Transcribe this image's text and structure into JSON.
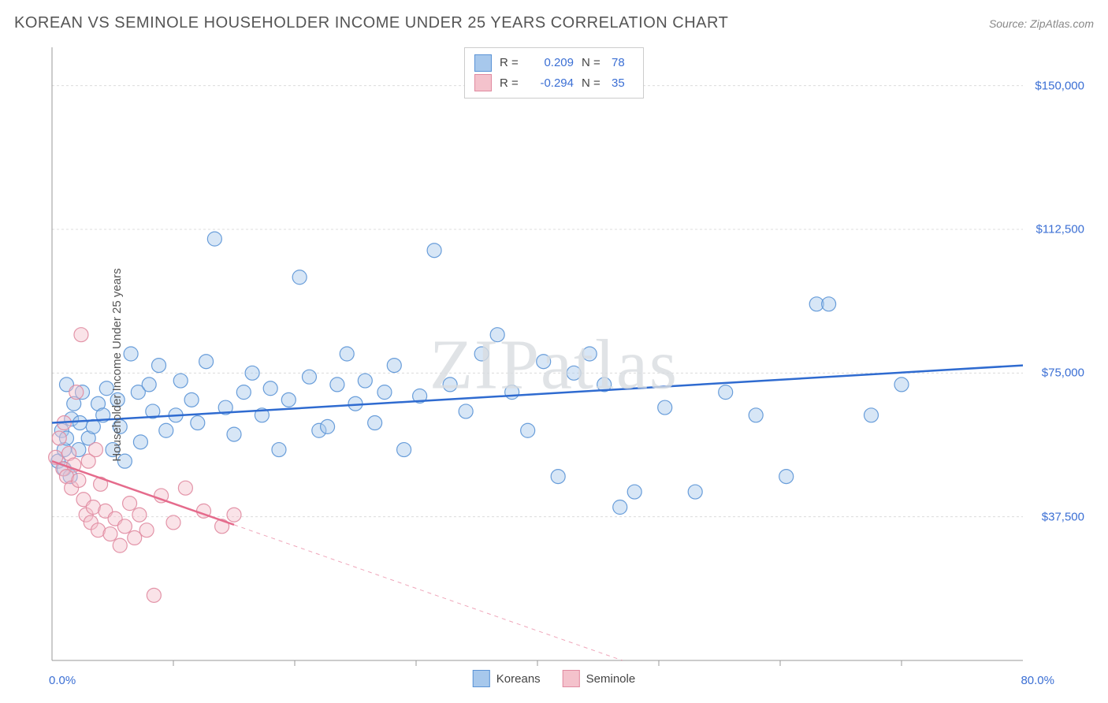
{
  "title": "KOREAN VS SEMINOLE HOUSEHOLDER INCOME UNDER 25 YEARS CORRELATION CHART",
  "source": "Source: ZipAtlas.com",
  "ylabel": "Householder Income Under 25 years",
  "watermark": "ZIPatlas",
  "chart": {
    "type": "scatter",
    "background_color": "#ffffff",
    "grid_color": "#dcdcdc",
    "axis_color": "#999999",
    "xlim": [
      0,
      80
    ],
    "ylim": [
      0,
      160000
    ],
    "x_tick_positions": [
      10,
      20,
      30,
      40,
      50,
      60,
      70
    ],
    "x_axis_label_min": "0.0%",
    "x_axis_label_max": "80.0%",
    "x_axis_label_color": "#3b6fd4",
    "y_ticks": [
      {
        "v": 37500,
        "label": "$37,500"
      },
      {
        "v": 75000,
        "label": "$75,000"
      },
      {
        "v": 112500,
        "label": "$112,500"
      },
      {
        "v": 150000,
        "label": "$150,000"
      }
    ],
    "y_tick_color": "#3b6fd4",
    "marker_radius": 9,
    "marker_opacity": 0.45,
    "marker_stroke_opacity": 0.9,
    "line_width": 2.5
  },
  "series": [
    {
      "name": "Koreans",
      "color_fill": "#a7c8ec",
      "color_stroke": "#5a93d6",
      "line_color": "#2f6bd0",
      "R": "0.209",
      "N": "78",
      "trend": {
        "x1": 0,
        "y1": 62000,
        "x2": 80,
        "y2": 77000,
        "solid_until_x": 80
      },
      "points": [
        [
          0.5,
          52000
        ],
        [
          0.8,
          60000
        ],
        [
          1.0,
          50000
        ],
        [
          1.0,
          55000
        ],
        [
          1.2,
          72000
        ],
        [
          1.2,
          58000
        ],
        [
          1.5,
          48000
        ],
        [
          1.6,
          63000
        ],
        [
          1.8,
          67000
        ],
        [
          2.2,
          55000
        ],
        [
          2.3,
          62000
        ],
        [
          2.5,
          70000
        ],
        [
          3.0,
          58000
        ],
        [
          3.4,
          61000
        ],
        [
          3.8,
          67000
        ],
        [
          4.2,
          64000
        ],
        [
          4.5,
          71000
        ],
        [
          5.0,
          55000
        ],
        [
          5.4,
          68000
        ],
        [
          5.6,
          61000
        ],
        [
          6.0,
          52000
        ],
        [
          6.5,
          80000
        ],
        [
          7.1,
          70000
        ],
        [
          7.3,
          57000
        ],
        [
          8.0,
          72000
        ],
        [
          8.3,
          65000
        ],
        [
          8.8,
          77000
        ],
        [
          9.4,
          60000
        ],
        [
          10.2,
          64000
        ],
        [
          10.6,
          73000
        ],
        [
          11.5,
          68000
        ],
        [
          12.0,
          62000
        ],
        [
          12.7,
          78000
        ],
        [
          13.4,
          110000
        ],
        [
          14.3,
          66000
        ],
        [
          15.0,
          59000
        ],
        [
          15.8,
          70000
        ],
        [
          16.5,
          75000
        ],
        [
          17.3,
          64000
        ],
        [
          18.0,
          71000
        ],
        [
          18.7,
          55000
        ],
        [
          19.5,
          68000
        ],
        [
          20.4,
          100000
        ],
        [
          21.2,
          74000
        ],
        [
          22.0,
          60000
        ],
        [
          22.7,
          61000
        ],
        [
          23.5,
          72000
        ],
        [
          24.3,
          80000
        ],
        [
          25.0,
          67000
        ],
        [
          25.8,
          73000
        ],
        [
          26.6,
          62000
        ],
        [
          27.4,
          70000
        ],
        [
          28.2,
          77000
        ],
        [
          29.0,
          55000
        ],
        [
          30.3,
          69000
        ],
        [
          31.5,
          107000
        ],
        [
          32.8,
          72000
        ],
        [
          34.1,
          65000
        ],
        [
          35.4,
          80000
        ],
        [
          36.7,
          85000
        ],
        [
          37.9,
          70000
        ],
        [
          39.2,
          60000
        ],
        [
          40.5,
          78000
        ],
        [
          41.7,
          48000
        ],
        [
          43.0,
          75000
        ],
        [
          44.3,
          80000
        ],
        [
          45.5,
          72000
        ],
        [
          46.8,
          40000
        ],
        [
          48.0,
          44000
        ],
        [
          50.5,
          66000
        ],
        [
          53.0,
          44000
        ],
        [
          55.5,
          70000
        ],
        [
          58.0,
          64000
        ],
        [
          60.5,
          48000
        ],
        [
          63.0,
          93000
        ],
        [
          64.0,
          93000
        ],
        [
          67.5,
          64000
        ],
        [
          70.0,
          72000
        ]
      ]
    },
    {
      "name": "Seminole",
      "color_fill": "#f4c2cc",
      "color_stroke": "#e08aa0",
      "line_color": "#e56b8c",
      "R": "-0.294",
      "N": "35",
      "trend": {
        "x1": 0,
        "y1": 52000,
        "x2": 47,
        "y2": 0,
        "solid_until_x": 15
      },
      "points": [
        [
          0.3,
          53000
        ],
        [
          0.6,
          58000
        ],
        [
          0.9,
          50000
        ],
        [
          1.0,
          62000
        ],
        [
          1.2,
          48000
        ],
        [
          1.4,
          54000
        ],
        [
          1.6,
          45000
        ],
        [
          1.8,
          51000
        ],
        [
          2.0,
          70000
        ],
        [
          2.2,
          47000
        ],
        [
          2.4,
          85000
        ],
        [
          2.6,
          42000
        ],
        [
          2.8,
          38000
        ],
        [
          3.0,
          52000
        ],
        [
          3.2,
          36000
        ],
        [
          3.4,
          40000
        ],
        [
          3.6,
          55000
        ],
        [
          3.8,
          34000
        ],
        [
          4.0,
          46000
        ],
        [
          4.4,
          39000
        ],
        [
          4.8,
          33000
        ],
        [
          5.2,
          37000
        ],
        [
          5.6,
          30000
        ],
        [
          6.0,
          35000
        ],
        [
          6.4,
          41000
        ],
        [
          6.8,
          32000
        ],
        [
          7.2,
          38000
        ],
        [
          7.8,
          34000
        ],
        [
          8.4,
          17000
        ],
        [
          9.0,
          43000
        ],
        [
          10.0,
          36000
        ],
        [
          11.0,
          45000
        ],
        [
          12.5,
          39000
        ],
        [
          14.0,
          35000
        ],
        [
          15.0,
          38000
        ]
      ]
    }
  ],
  "legend_labels": {
    "R": "R  =",
    "N": "N  ="
  }
}
